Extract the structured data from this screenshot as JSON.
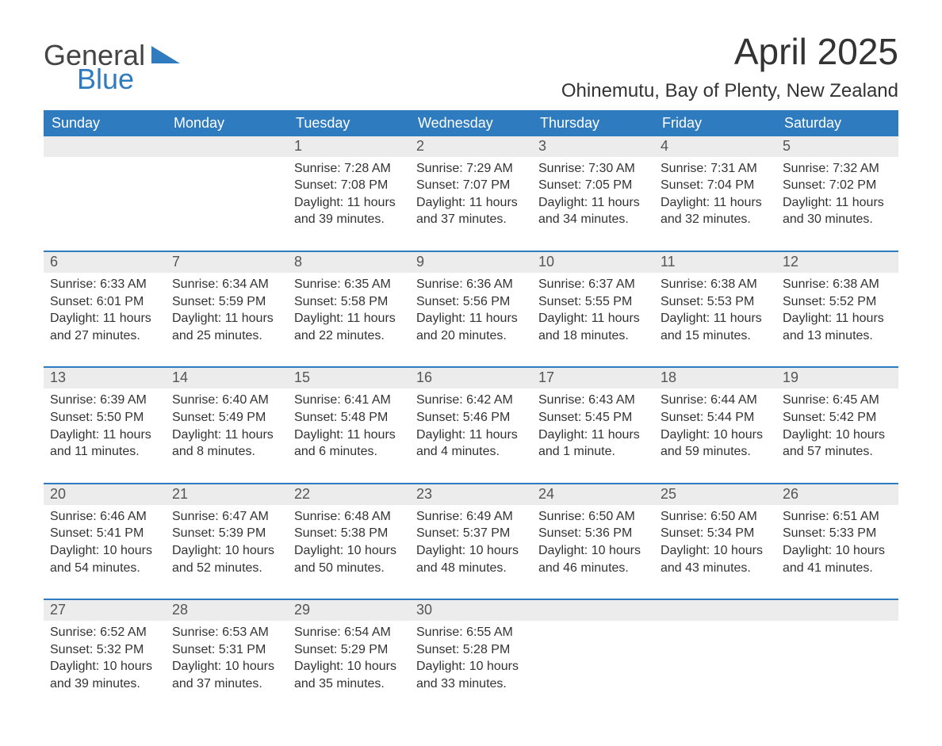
{
  "logo": {
    "word1": "General",
    "word2": "Blue"
  },
  "title": "April 2025",
  "subtitle": "Ohinemutu, Bay of Plenty, New Zealand",
  "colors": {
    "header_bg": "#2f7bbf",
    "header_text": "#ffffff",
    "daynum_bg": "#ececec",
    "row_border": "#2f7bbf",
    "body_text": "#333333",
    "page_bg": "#ffffff"
  },
  "typography": {
    "title_fontsize": 46,
    "subtitle_fontsize": 24,
    "header_fontsize": 18,
    "daynum_fontsize": 18,
    "cell_fontsize": 16,
    "font_family": "Segoe UI"
  },
  "layout": {
    "columns": 7,
    "rows": 5,
    "first_weekday_index": 2
  },
  "weekdays": [
    "Sunday",
    "Monday",
    "Tuesday",
    "Wednesday",
    "Thursday",
    "Friday",
    "Saturday"
  ],
  "days": [
    {
      "n": 1,
      "sunrise": "7:28 AM",
      "sunset": "7:08 PM",
      "daylight": "11 hours and 39 minutes."
    },
    {
      "n": 2,
      "sunrise": "7:29 AM",
      "sunset": "7:07 PM",
      "daylight": "11 hours and 37 minutes."
    },
    {
      "n": 3,
      "sunrise": "7:30 AM",
      "sunset": "7:05 PM",
      "daylight": "11 hours and 34 minutes."
    },
    {
      "n": 4,
      "sunrise": "7:31 AM",
      "sunset": "7:04 PM",
      "daylight": "11 hours and 32 minutes."
    },
    {
      "n": 5,
      "sunrise": "7:32 AM",
      "sunset": "7:02 PM",
      "daylight": "11 hours and 30 minutes."
    },
    {
      "n": 6,
      "sunrise": "6:33 AM",
      "sunset": "6:01 PM",
      "daylight": "11 hours and 27 minutes."
    },
    {
      "n": 7,
      "sunrise": "6:34 AM",
      "sunset": "5:59 PM",
      "daylight": "11 hours and 25 minutes."
    },
    {
      "n": 8,
      "sunrise": "6:35 AM",
      "sunset": "5:58 PM",
      "daylight": "11 hours and 22 minutes."
    },
    {
      "n": 9,
      "sunrise": "6:36 AM",
      "sunset": "5:56 PM",
      "daylight": "11 hours and 20 minutes."
    },
    {
      "n": 10,
      "sunrise": "6:37 AM",
      "sunset": "5:55 PM",
      "daylight": "11 hours and 18 minutes."
    },
    {
      "n": 11,
      "sunrise": "6:38 AM",
      "sunset": "5:53 PM",
      "daylight": "11 hours and 15 minutes."
    },
    {
      "n": 12,
      "sunrise": "6:38 AM",
      "sunset": "5:52 PM",
      "daylight": "11 hours and 13 minutes."
    },
    {
      "n": 13,
      "sunrise": "6:39 AM",
      "sunset": "5:50 PM",
      "daylight": "11 hours and 11 minutes."
    },
    {
      "n": 14,
      "sunrise": "6:40 AM",
      "sunset": "5:49 PM",
      "daylight": "11 hours and 8 minutes."
    },
    {
      "n": 15,
      "sunrise": "6:41 AM",
      "sunset": "5:48 PM",
      "daylight": "11 hours and 6 minutes."
    },
    {
      "n": 16,
      "sunrise": "6:42 AM",
      "sunset": "5:46 PM",
      "daylight": "11 hours and 4 minutes."
    },
    {
      "n": 17,
      "sunrise": "6:43 AM",
      "sunset": "5:45 PM",
      "daylight": "11 hours and 1 minute."
    },
    {
      "n": 18,
      "sunrise": "6:44 AM",
      "sunset": "5:44 PM",
      "daylight": "10 hours and 59 minutes."
    },
    {
      "n": 19,
      "sunrise": "6:45 AM",
      "sunset": "5:42 PM",
      "daylight": "10 hours and 57 minutes."
    },
    {
      "n": 20,
      "sunrise": "6:46 AM",
      "sunset": "5:41 PM",
      "daylight": "10 hours and 54 minutes."
    },
    {
      "n": 21,
      "sunrise": "6:47 AM",
      "sunset": "5:39 PM",
      "daylight": "10 hours and 52 minutes."
    },
    {
      "n": 22,
      "sunrise": "6:48 AM",
      "sunset": "5:38 PM",
      "daylight": "10 hours and 50 minutes."
    },
    {
      "n": 23,
      "sunrise": "6:49 AM",
      "sunset": "5:37 PM",
      "daylight": "10 hours and 48 minutes."
    },
    {
      "n": 24,
      "sunrise": "6:50 AM",
      "sunset": "5:36 PM",
      "daylight": "10 hours and 46 minutes."
    },
    {
      "n": 25,
      "sunrise": "6:50 AM",
      "sunset": "5:34 PM",
      "daylight": "10 hours and 43 minutes."
    },
    {
      "n": 26,
      "sunrise": "6:51 AM",
      "sunset": "5:33 PM",
      "daylight": "10 hours and 41 minutes."
    },
    {
      "n": 27,
      "sunrise": "6:52 AM",
      "sunset": "5:32 PM",
      "daylight": "10 hours and 39 minutes."
    },
    {
      "n": 28,
      "sunrise": "6:53 AM",
      "sunset": "5:31 PM",
      "daylight": "10 hours and 37 minutes."
    },
    {
      "n": 29,
      "sunrise": "6:54 AM",
      "sunset": "5:29 PM",
      "daylight": "10 hours and 35 minutes."
    },
    {
      "n": 30,
      "sunrise": "6:55 AM",
      "sunset": "5:28 PM",
      "daylight": "10 hours and 33 minutes."
    }
  ],
  "labels": {
    "sunrise": "Sunrise:",
    "sunset": "Sunset:",
    "daylight": "Daylight:"
  }
}
